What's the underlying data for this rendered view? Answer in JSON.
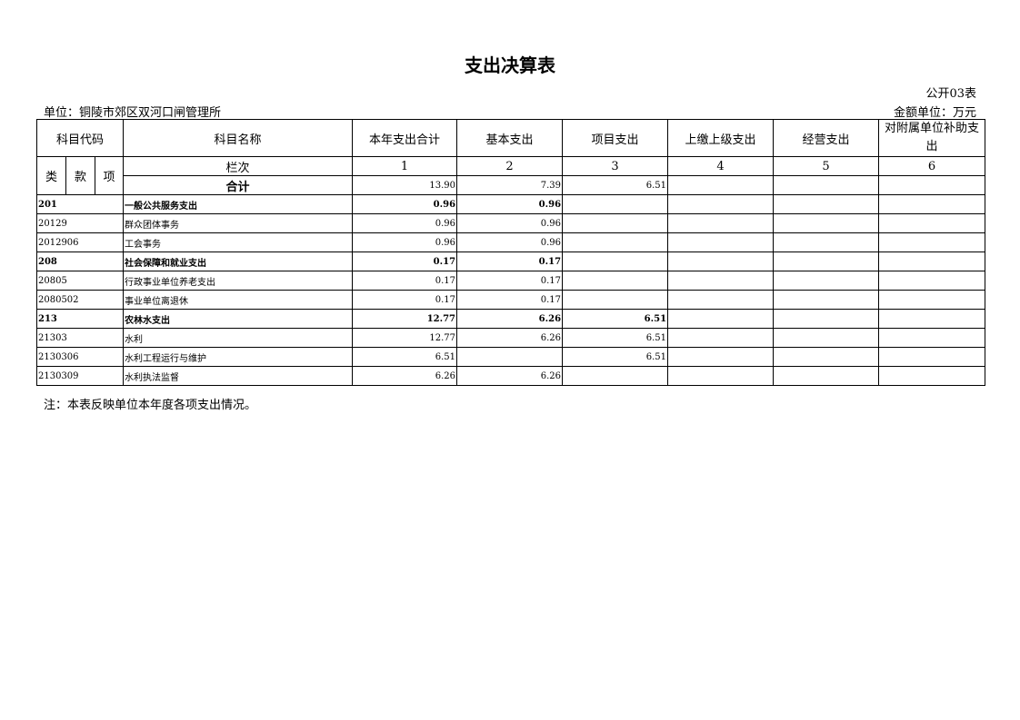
{
  "title": "支出决算表",
  "form_no": "公开03表",
  "unit": "单位：铜陵市郊区双河口闸管理所",
  "money_unit": "金额单位：万元",
  "headers": {
    "code": "科目代码",
    "name": "科目名称",
    "cols": [
      "本年支出合计",
      "基本支出",
      "项目支出",
      "上缴上级支出",
      "经营支出",
      "对附属单位补助支出"
    ],
    "lei": "类",
    "kuan": "款",
    "xiang": "项",
    "lanci": "栏次",
    "col_nums": [
      "1",
      "2",
      "3",
      "4",
      "5",
      "6"
    ]
  },
  "total": {
    "label": "合计",
    "values": [
      "13.90",
      "7.39",
      "6.51",
      "",
      "",
      ""
    ]
  },
  "rows": [
    {
      "code": "201",
      "name": "一般公共服务支出",
      "bold": true,
      "values": [
        "0.96",
        "0.96",
        "",
        "",
        "",
        ""
      ]
    },
    {
      "code": "20129",
      "name": "群众团体事务",
      "bold": false,
      "values": [
        "0.96",
        "0.96",
        "",
        "",
        "",
        ""
      ]
    },
    {
      "code": "2012906",
      "name": "工会事务",
      "bold": false,
      "values": [
        "0.96",
        "0.96",
        "",
        "",
        "",
        ""
      ]
    },
    {
      "code": "208",
      "name": "社会保障和就业支出",
      "bold": true,
      "values": [
        "0.17",
        "0.17",
        "",
        "",
        "",
        ""
      ]
    },
    {
      "code": "20805",
      "name": "行政事业单位养老支出",
      "bold": false,
      "values": [
        "0.17",
        "0.17",
        "",
        "",
        "",
        ""
      ]
    },
    {
      "code": "2080502",
      "name": "事业单位离退休",
      "bold": false,
      "values": [
        "0.17",
        "0.17",
        "",
        "",
        "",
        ""
      ]
    },
    {
      "code": "213",
      "name": "农林水支出",
      "bold": true,
      "values": [
        "12.77",
        "6.26",
        "6.51",
        "",
        "",
        ""
      ]
    },
    {
      "code": "21303",
      "name": "水利",
      "bold": false,
      "values": [
        "12.77",
        "6.26",
        "6.51",
        "",
        "",
        ""
      ]
    },
    {
      "code": "2130306",
      "name": "水利工程运行与维护",
      "bold": false,
      "values": [
        "6.51",
        "",
        "6.51",
        "",
        "",
        ""
      ]
    },
    {
      "code": "2130309",
      "name": "水利执法监督",
      "bold": false,
      "values": [
        "6.26",
        "6.26",
        "",
        "",
        "",
        ""
      ]
    }
  ],
  "note": "注：本表反映单位本年度各项支出情况。"
}
